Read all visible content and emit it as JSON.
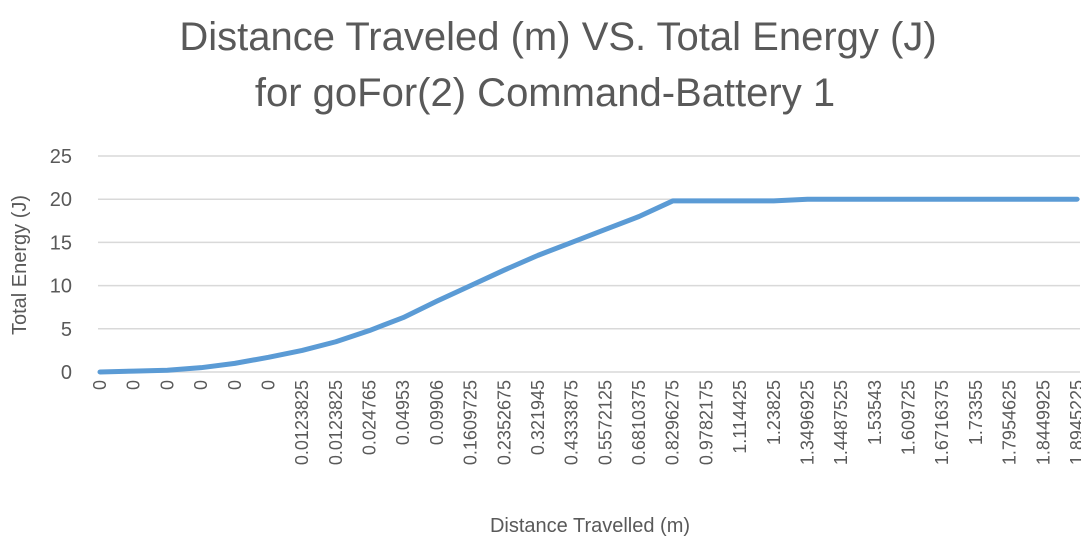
{
  "chart_data": {
    "type": "line",
    "title": [
      "Distance Traveled (m) VS. Total Energy (J)",
      "for goFor(2) Command-Battery 1"
    ],
    "x_label": "Distance Travelled  (m)",
    "y_label": "Total Energy (J)",
    "categories": [
      "0",
      "0",
      "0",
      "0",
      "0",
      "0",
      "0.0123825",
      "0.0123825",
      "0.024765",
      "0.04953",
      "0.09906",
      "0.1609725",
      "0.2352675",
      "0.321945",
      "0.4333875",
      "0.5572125",
      "0.6810375",
      "0.8296275",
      "0.9782175",
      "1.114425",
      "1.23825",
      "1.3496925",
      "1.4487525",
      "1.53543",
      "1.609725",
      "1.6716375",
      "1.73355",
      "1.7954625",
      "1.8449925",
      "1.8945225"
    ],
    "series": [
      {
        "name": "Total Energy (J)",
        "color": "#5b9bd5",
        "values": [
          0,
          0.1,
          0.2,
          0.5,
          1.0,
          1.7,
          2.5,
          3.5,
          4.8,
          6.3,
          8.2,
          10.0,
          11.8,
          13.5,
          15.0,
          16.5,
          18.0,
          19.8,
          19.8,
          19.8,
          19.8,
          20.0,
          20.0,
          20.0,
          20.0,
          20.0,
          20.0,
          20.0,
          20.0,
          20.0
        ]
      }
    ],
    "ylim": [
      0,
      25
    ],
    "yticks": [
      0,
      5,
      10,
      15,
      20,
      25
    ],
    "grid": true
  }
}
